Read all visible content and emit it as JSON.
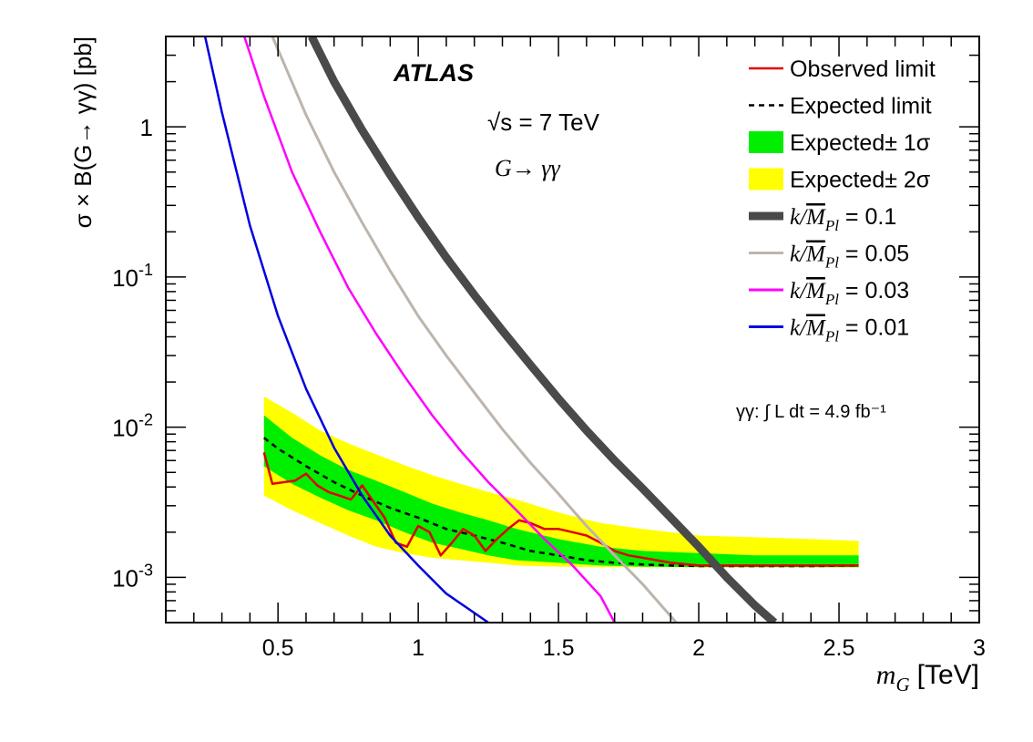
{
  "chart_data": {
    "type": "line",
    "experiment": "ATLAS",
    "energy_label": "√s = 7 TeV",
    "channel_label": "G→ γγ",
    "luminosity_label": "γγ: ∫ L dt = 4.9 fb⁻¹",
    "xlabel": "m_G [TeV]",
    "xlabel_main": "m",
    "xlabel_sub": "G",
    "xlabel_unit": "[TeV]",
    "ylabel": "σ × B(G→ γγ) [pb]",
    "xlim": [
      0.1,
      3.0
    ],
    "ylim": [
      0.0005,
      4.0
    ],
    "yscale": "log",
    "x_ticks": [
      {
        "value": 0.5,
        "label": "0.5"
      },
      {
        "value": 1.0,
        "label": "1"
      },
      {
        "value": 1.5,
        "label": "1.5"
      },
      {
        "value": 2.0,
        "label": "2"
      },
      {
        "value": 2.5,
        "label": "2.5"
      },
      {
        "value": 3.0,
        "label": "3"
      }
    ],
    "y_ticks": [
      {
        "value": 1,
        "label": "1"
      },
      {
        "value": 0.1,
        "label": "10",
        "exp": "-1"
      },
      {
        "value": 0.01,
        "label": "10",
        "exp": "-2"
      },
      {
        "value": 0.001,
        "label": "10",
        "exp": "-3"
      }
    ],
    "legend": [
      {
        "label": "Observed limit",
        "kind": "line",
        "color": "#e00000",
        "width": 2.5
      },
      {
        "label": "Expected limit",
        "kind": "dashed",
        "color": "#000000",
        "width": 2.5
      },
      {
        "label": "Expected± 1σ",
        "kind": "box",
        "color": "#00ee00"
      },
      {
        "label": "Expected± 2σ",
        "kind": "box",
        "color": "#ffff00"
      },
      {
        "label": "k/M̅ Pl = 0.1",
        "prefix": "k/",
        "mbar": "M",
        "sub": "Pl",
        "value_text": " = 0.1",
        "kind": "line",
        "color": "#4a4a4a",
        "width": 9
      },
      {
        "label": "k/M̅ Pl = 0.05",
        "prefix": "k/",
        "mbar": "M",
        "sub": "Pl",
        "value_text": " = 0.05",
        "kind": "line",
        "color": "#bdb5ad",
        "width": 3
      },
      {
        "label": "k/M̅ Pl = 0.03",
        "prefix": "k/",
        "mbar": "M",
        "sub": "Pl",
        "value_text": " = 0.03",
        "kind": "line",
        "color": "#ff00ff",
        "width": 3
      },
      {
        "label": "k/M̅ Pl = 0.01",
        "prefix": "k/",
        "mbar": "M",
        "sub": "Pl",
        "value_text": " = 0.01",
        "kind": "line",
        "color": "#0000e0",
        "width": 3
      }
    ],
    "bands": {
      "x": [
        0.45,
        0.55,
        0.65,
        0.75,
        0.85,
        0.95,
        1.05,
        1.15,
        1.25,
        1.35,
        1.5,
        1.65,
        1.8,
        2.0,
        2.2,
        2.4,
        2.57
      ],
      "one_sigma_low": [
        0.0055,
        0.0042,
        0.0034,
        0.0028,
        0.0024,
        0.002,
        0.0017,
        0.00155,
        0.0014,
        0.0013,
        0.00125,
        0.0012,
        0.00118,
        0.00117,
        0.00117,
        0.00117,
        0.00117
      ],
      "one_sigma_high": [
        0.012,
        0.0085,
        0.0065,
        0.0052,
        0.0044,
        0.0037,
        0.0031,
        0.0027,
        0.0024,
        0.0021,
        0.0018,
        0.0016,
        0.0015,
        0.00145,
        0.0014,
        0.0014,
        0.0014
      ],
      "two_sigma_low": [
        0.0035,
        0.0028,
        0.0023,
        0.0019,
        0.0016,
        0.00145,
        0.00135,
        0.0013,
        0.00125,
        0.0012,
        0.00118,
        0.00117,
        0.00117,
        0.00117,
        0.00117,
        0.00117,
        0.00117
      ],
      "two_sigma_high": [
        0.016,
        0.0125,
        0.0095,
        0.0078,
        0.0066,
        0.0056,
        0.0048,
        0.0042,
        0.0037,
        0.0033,
        0.0027,
        0.0023,
        0.0021,
        0.0019,
        0.00185,
        0.0018,
        0.00175
      ]
    },
    "series": [
      {
        "name": "Expected limit",
        "color": "#000000",
        "dash": true,
        "width": 2.5,
        "x": [
          0.45,
          0.5,
          0.6,
          0.7,
          0.8,
          0.9,
          1.0,
          1.1,
          1.2,
          1.3,
          1.4,
          1.5,
          1.6,
          1.7,
          1.8,
          1.9,
          2.0,
          2.2,
          2.4,
          2.57
        ],
        "y": [
          0.0085,
          0.0072,
          0.0055,
          0.0043,
          0.0035,
          0.0029,
          0.0025,
          0.0021,
          0.0019,
          0.0017,
          0.0015,
          0.0014,
          0.0013,
          0.00125,
          0.00122,
          0.0012,
          0.00119,
          0.00119,
          0.00119,
          0.0012
        ]
      },
      {
        "name": "Observed limit",
        "color": "#e00000",
        "dash": false,
        "width": 2.5,
        "x": [
          0.45,
          0.48,
          0.52,
          0.56,
          0.6,
          0.64,
          0.68,
          0.72,
          0.76,
          0.8,
          0.84,
          0.88,
          0.92,
          0.96,
          1.0,
          1.04,
          1.08,
          1.12,
          1.16,
          1.2,
          1.24,
          1.28,
          1.32,
          1.36,
          1.4,
          1.45,
          1.5,
          1.55,
          1.6,
          1.65,
          1.7,
          1.75,
          1.8,
          1.9,
          2.0,
          2.1,
          2.2,
          2.3,
          2.4,
          2.5,
          2.57
        ],
        "y": [
          0.0068,
          0.0042,
          0.0043,
          0.0044,
          0.0049,
          0.0041,
          0.0037,
          0.0035,
          0.0033,
          0.0041,
          0.0032,
          0.0025,
          0.0017,
          0.0016,
          0.0022,
          0.002,
          0.0014,
          0.0017,
          0.0021,
          0.0019,
          0.0015,
          0.0018,
          0.0021,
          0.0024,
          0.0023,
          0.0021,
          0.0021,
          0.002,
          0.0019,
          0.0017,
          0.0015,
          0.0014,
          0.00135,
          0.00125,
          0.0012,
          0.0012,
          0.0012,
          0.0012,
          0.0012,
          0.0012,
          0.0012
        ]
      },
      {
        "name": "k/M̅ Pl = 0.01",
        "color": "#0000e0",
        "dash": false,
        "width": 2.5,
        "x": [
          0.24,
          0.3,
          0.4,
          0.5,
          0.6,
          0.7,
          0.8,
          0.9,
          1.0,
          1.1,
          1.2,
          1.25
        ],
        "y": [
          4.0,
          1.25,
          0.22,
          0.055,
          0.018,
          0.0073,
          0.0035,
          0.0019,
          0.0012,
          0.00078,
          0.00058,
          0.0005
        ]
      },
      {
        "name": "k/M̅ Pl = 0.03",
        "color": "#ff00ff",
        "dash": false,
        "width": 2.5,
        "x": [
          0.38,
          0.45,
          0.55,
          0.65,
          0.75,
          0.85,
          0.95,
          1.05,
          1.15,
          1.25,
          1.35,
          1.45,
          1.55,
          1.65,
          1.7
        ],
        "y": [
          4.0,
          1.6,
          0.5,
          0.2,
          0.085,
          0.042,
          0.022,
          0.012,
          0.007,
          0.0043,
          0.0028,
          0.0018,
          0.0012,
          0.00075,
          0.0005
        ]
      },
      {
        "name": "k/M̅ Pl = 0.05",
        "color": "#bdb5ad",
        "dash": false,
        "width": 3,
        "x": [
          0.48,
          0.6,
          0.7,
          0.8,
          0.9,
          1.0,
          1.1,
          1.2,
          1.3,
          1.4,
          1.5,
          1.6,
          1.7,
          1.8,
          1.92
        ],
        "y": [
          4.0,
          1.2,
          0.5,
          0.23,
          0.11,
          0.055,
          0.03,
          0.017,
          0.0097,
          0.0058,
          0.0036,
          0.0022,
          0.0014,
          0.0009,
          0.0005
        ]
      },
      {
        "name": "k/M̅ Pl = 0.1",
        "color": "#4a4a4a",
        "dash": false,
        "width": 9,
        "x": [
          0.62,
          0.7,
          0.8,
          0.9,
          1.0,
          1.1,
          1.2,
          1.3,
          1.4,
          1.5,
          1.6,
          1.7,
          1.8,
          1.9,
          2.0,
          2.1,
          2.2,
          2.27
        ],
        "y": [
          4.0,
          2.0,
          0.95,
          0.48,
          0.25,
          0.135,
          0.076,
          0.044,
          0.026,
          0.0155,
          0.0095,
          0.006,
          0.0039,
          0.0025,
          0.0016,
          0.001,
          0.00065,
          0.0005
        ]
      }
    ]
  }
}
